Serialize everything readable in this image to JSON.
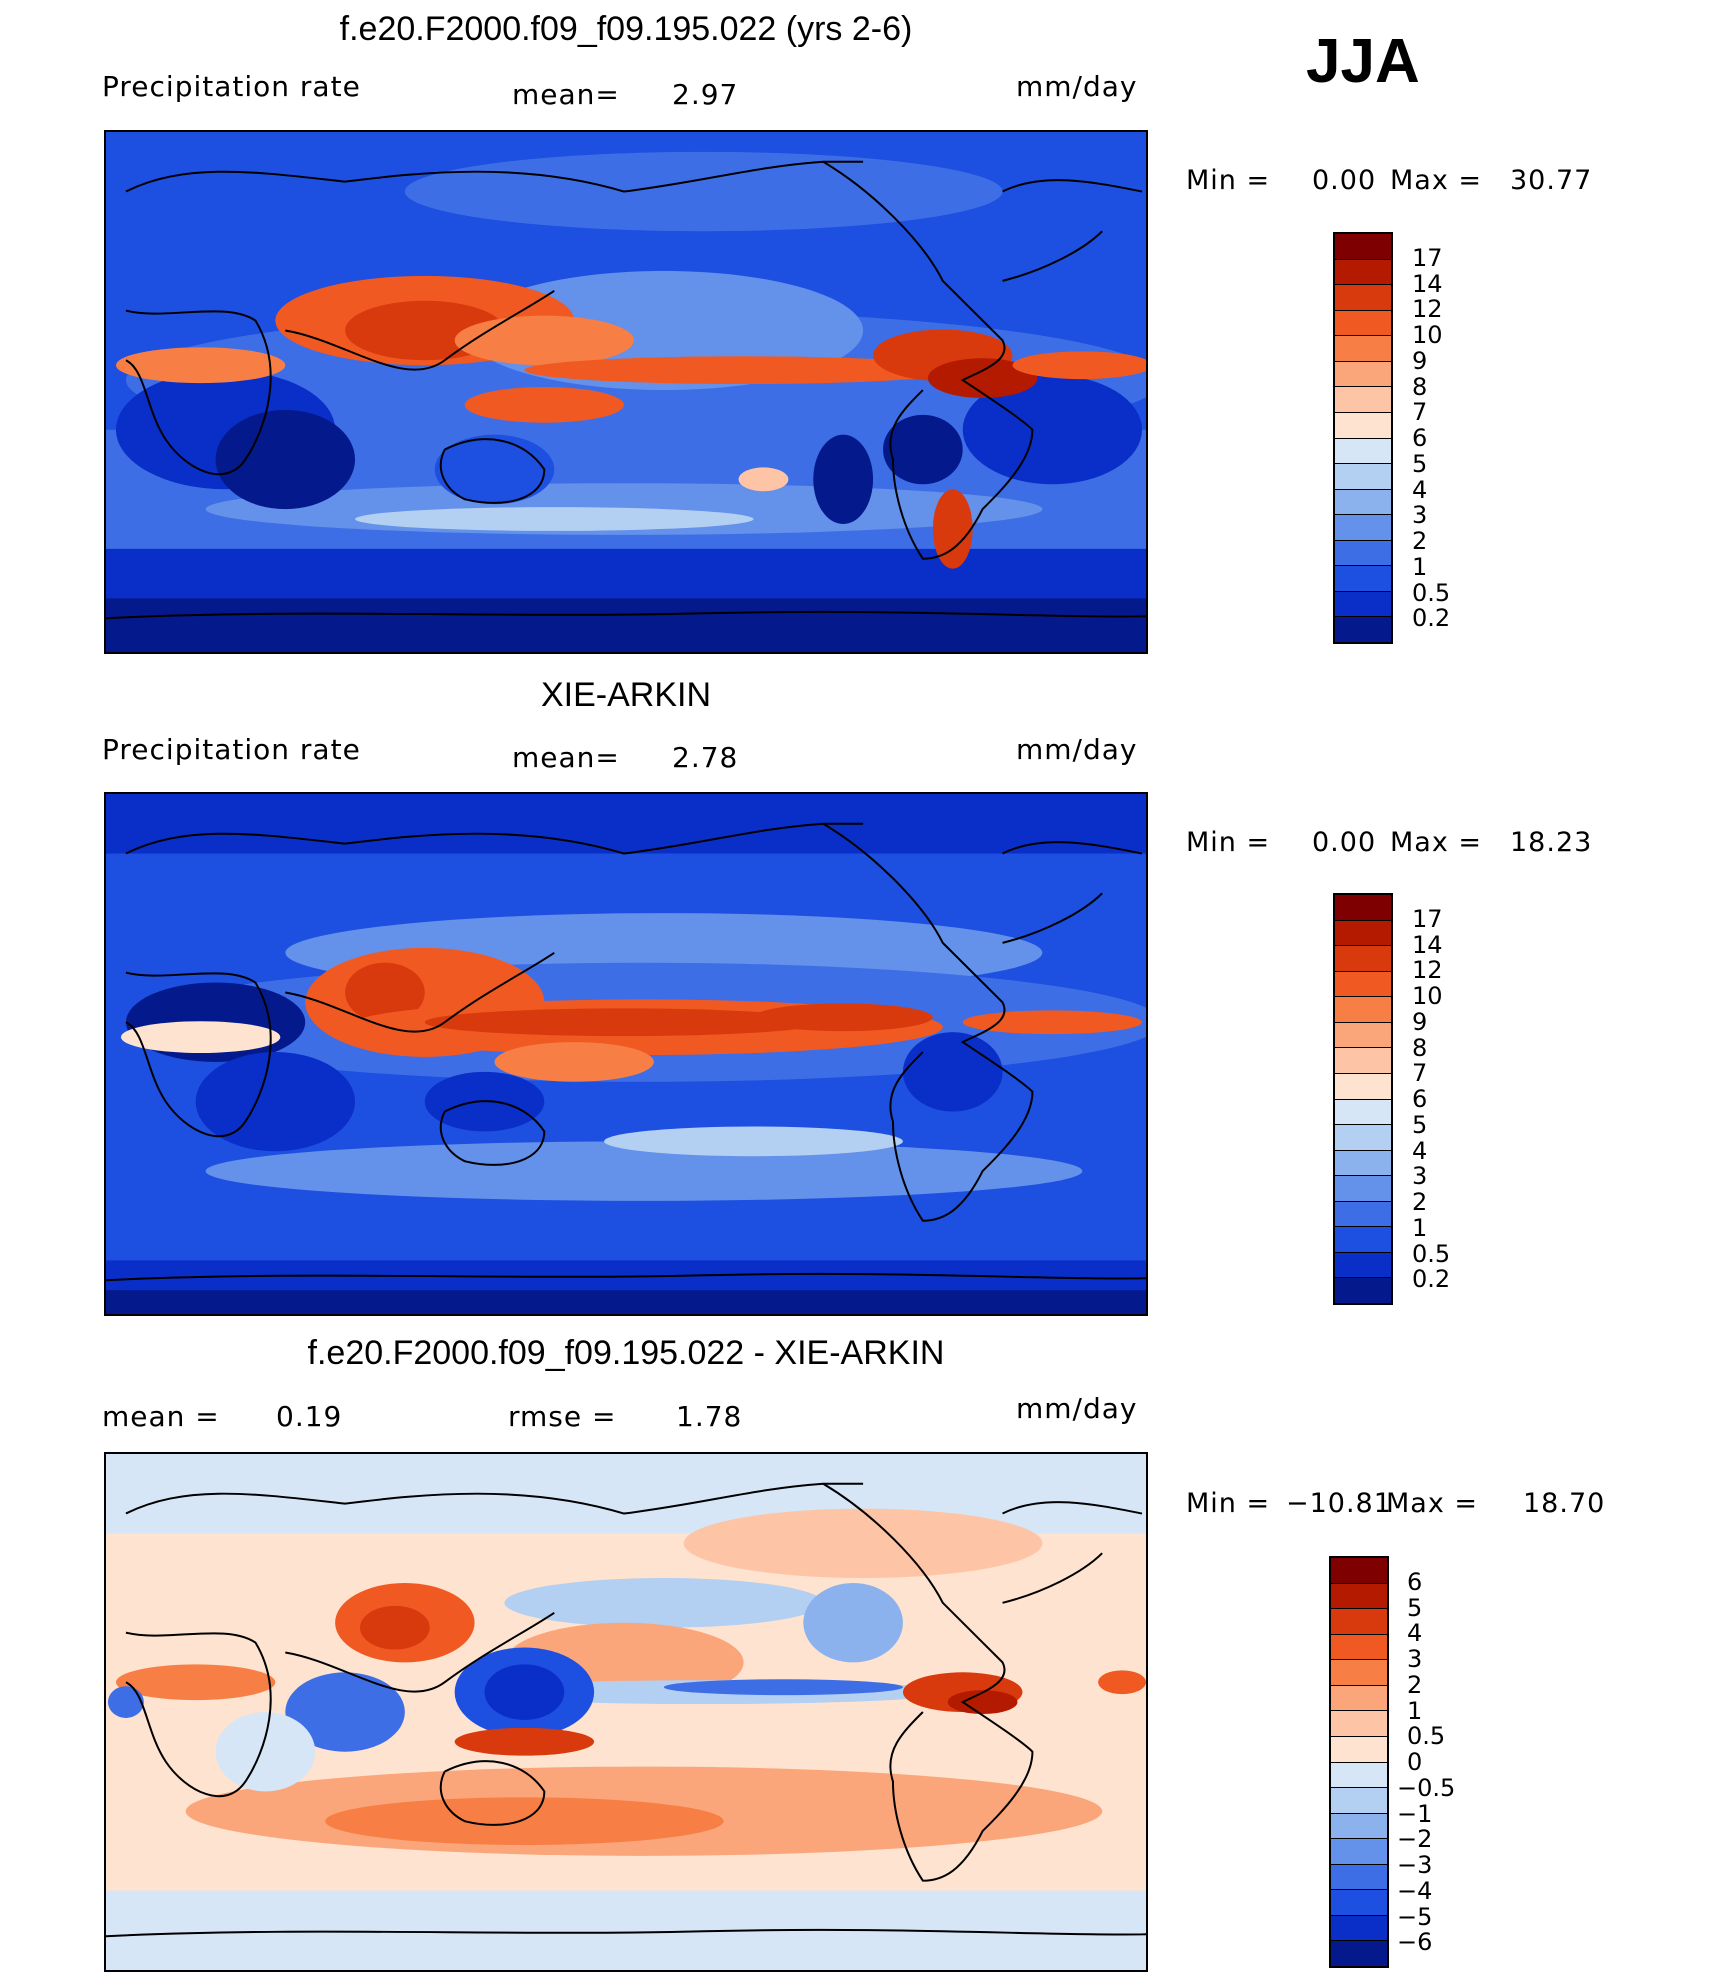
{
  "season": "JJA",
  "panels": [
    {
      "title": "f.e20.F2000.f09_f09.195.022 (yrs 2-6)",
      "left_label": "Precipitation  rate",
      "mid_label": "mean=",
      "mid_value": "2.97",
      "units": "mm/day",
      "min_label": "Min  =",
      "min_value": "0.00",
      "max_label": "Max  =",
      "max_value": "30.77"
    },
    {
      "title": "XIE-ARKIN",
      "left_label": "Precipitation  rate",
      "mid_label": "mean=",
      "mid_value": "2.78",
      "units": "mm/day",
      "min_label": "Min  =",
      "min_value": "0.00",
      "max_label": "Max  =",
      "max_value": "18.23"
    },
    {
      "title": "f.e20.F2000.f09_f09.195.022 - XIE-ARKIN",
      "left_label": "mean  =",
      "left_value": "0.19",
      "mid_label": "rmse  =",
      "mid_value": "1.78",
      "units": "mm/day",
      "min_label": "Min  =",
      "min_value": "−10.81",
      "max_label": "Max  =",
      "max_value": "18.70"
    }
  ],
  "colorbars": {
    "precip": {
      "levels": [
        "17",
        "14",
        "12",
        "10",
        "9",
        "8",
        "7",
        "6",
        "5",
        "4",
        "3",
        "2",
        "1",
        "0.5",
        "0.2"
      ],
      "colors": [
        "#7f0000",
        "#b31a00",
        "#d93a0d",
        "#f05a22",
        "#f77f45",
        "#fba57a",
        "#fdc5a6",
        "#fde3d0",
        "#d6e6f7",
        "#b3cff2",
        "#8cb2ee",
        "#6491ea",
        "#3e6ee6",
        "#1d4fe0",
        "#0a2fc8",
        "#041a8c"
      ]
    },
    "diff": {
      "levels": [
        "6",
        "5",
        "4",
        "3",
        "2",
        "1",
        "0.5",
        "0",
        "−0.5",
        "−1",
        "−2",
        "−3",
        "−4",
        "−5",
        "−6"
      ],
      "colors": [
        "#7f0000",
        "#b31a00",
        "#d93a0d",
        "#f05a22",
        "#f77f45",
        "#fba57a",
        "#fdc5a6",
        "#fde3d0",
        "#d6e6f7",
        "#b3cff2",
        "#8cb2ee",
        "#6491ea",
        "#3e6ee6",
        "#1d4fe0",
        "#0a2fc8",
        "#041a8c"
      ]
    }
  },
  "chart_data": [
    {
      "type": "heatmap",
      "title": "f.e20.F2000.f09_f09.195.022 (yrs 2-6)",
      "variable": "Precipitation  rate",
      "units": "mm/day",
      "mean": 2.97,
      "min": 0.0,
      "max": 30.77,
      "contour_levels": [
        0.2,
        0.5,
        1,
        2,
        3,
        4,
        5,
        6,
        7,
        8,
        9,
        10,
        12,
        14,
        17
      ]
    },
    {
      "type": "heatmap",
      "title": "XIE-ARKIN",
      "variable": "Precipitation  rate",
      "units": "mm/day",
      "mean": 2.78,
      "min": 0.0,
      "max": 18.23,
      "contour_levels": [
        0.2,
        0.5,
        1,
        2,
        3,
        4,
        5,
        6,
        7,
        8,
        9,
        10,
        12,
        14,
        17
      ]
    },
    {
      "type": "heatmap",
      "title": "f.e20.F2000.f09_f09.195.022 - XIE-ARKIN",
      "units": "mm/day",
      "mean": 0.19,
      "rmse": 1.78,
      "min": -10.81,
      "max": 18.7,
      "contour_levels": [
        -6,
        -5,
        -4,
        -3,
        -2,
        -1,
        -0.5,
        0,
        0.5,
        1,
        2,
        3,
        4,
        5,
        6
      ]
    }
  ]
}
